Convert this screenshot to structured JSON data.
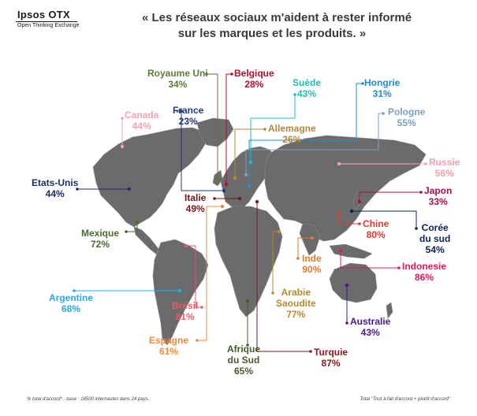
{
  "brand": {
    "name": "Ipsos OTX",
    "tagline": "Open Thinking Exchange"
  },
  "title": {
    "line1": "« Les réseaux sociaux m'aident à rester informé",
    "line2": "sur les marques et les produits.  »"
  },
  "countries": [
    {
      "key": "royaume-uni",
      "name": "Royaume Uni",
      "value": "34%",
      "color": "#5c7a3a"
    },
    {
      "key": "belgique",
      "name": "Belgique",
      "value": "28%",
      "color": "#b0102a"
    },
    {
      "key": "suede",
      "name": "Suède",
      "value": "43%",
      "color": "#1fc0b8"
    },
    {
      "key": "hongrie",
      "name": "Hongrie",
      "value": "31%",
      "color": "#1c8fd6"
    },
    {
      "key": "canada",
      "name": "Canada",
      "value": "44%",
      "color": "#f2a4b4"
    },
    {
      "key": "france",
      "name": "France",
      "value": "23%",
      "color": "#1f3b7a"
    },
    {
      "key": "pologne",
      "name": "Pologne",
      "value": "55%",
      "color": "#7ea0bf"
    },
    {
      "key": "allemagne",
      "name": "Allemagne",
      "value": "26%",
      "color": "#b08a3a"
    },
    {
      "key": "russie",
      "name": "Russie",
      "value": "56%",
      "color": "#f2a0ac"
    },
    {
      "key": "etats-unis",
      "name": "Etats-Unis",
      "value": "44%",
      "color": "#1c2f66"
    },
    {
      "key": "italie",
      "name": "Italie",
      "value": "49%",
      "color": "#6e1a1a"
    },
    {
      "key": "japon",
      "name": "Japon",
      "value": "33%",
      "color": "#a31050"
    },
    {
      "key": "chine",
      "name": "Chine",
      "value": "80%",
      "color": "#e23a2e"
    },
    {
      "key": "coree-du-sud",
      "name": "Corée du sud",
      "line1": "Corée",
      "line2": "du sud",
      "value": "54%",
      "color": "#10205a"
    },
    {
      "key": "mexique",
      "name": "Mexique",
      "value": "72%",
      "color": "#4a6a30"
    },
    {
      "key": "inde",
      "name": "Inde",
      "value": "90%",
      "color": "#e07a2e"
    },
    {
      "key": "indonesie",
      "name": "Indonesie",
      "value": "86%",
      "color": "#e01a5a"
    },
    {
      "key": "argentine",
      "name": "Argentine",
      "value": "68%",
      "color": "#2aa8e8"
    },
    {
      "key": "arabie-saoudite",
      "name": "Arabie Saoudite",
      "line1": "Arabie",
      "line2": "Saoudite",
      "value": "77%",
      "color": "#b88a2a"
    },
    {
      "key": "bresil",
      "name": "Brésil",
      "value": "81%",
      "color": "#e85a6a"
    },
    {
      "key": "australie",
      "name": "Australie",
      "value": "43%",
      "color": "#4a1a8a"
    },
    {
      "key": "espagne",
      "name": "Espagne",
      "value": "61%",
      "color": "#f08a3a"
    },
    {
      "key": "afrique-du-sud",
      "name": "Afrique du Sud",
      "line1": "Afrique",
      "line2": "du Sud",
      "value": "65%",
      "color": "#4a5a2a"
    },
    {
      "key": "turquie",
      "name": "Turquie",
      "value": "87%",
      "color": "#8a1a1a"
    }
  ],
  "footer": {
    "left": "% total d'accord* - base : 18500 internautes dans 24 pays.",
    "right": "Total \"Tout à fait d'accord + plutôt d'accord\""
  },
  "colors": {
    "land": "#6b6b6b",
    "land_edge": "#8a8a8a",
    "title": "#3a3a3a"
  }
}
